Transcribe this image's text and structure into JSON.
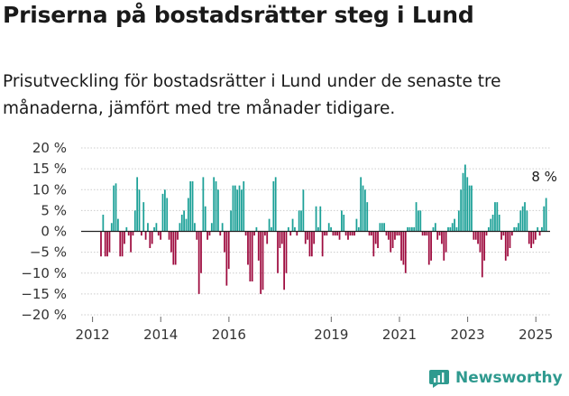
{
  "header": {
    "title": "Priserna på bostadsrätter steg i Lund",
    "subtitle": "Prisutveckling för bostadsrätter i Lund under de senaste tre månaderna, jämfört med tre månader tidigare."
  },
  "brand": {
    "name": "Newsworthy",
    "icon": "newsworthy-logo-icon",
    "color": "#2f9a8f"
  },
  "colors": {
    "positive": "#1ba097",
    "negative": "#9e0c3f",
    "zero_line": "#222222",
    "grid": "#cccccc"
  },
  "chart_data": {
    "type": "bar",
    "title": "Priserna på bostadsrätter steg i Lund",
    "xlabel": "",
    "ylabel": "",
    "ylim": [
      -20,
      20
    ],
    "yticks": [
      "20 %",
      "15 %",
      "10 %",
      "5 %",
      "0 %",
      "−5 %",
      "−10 %",
      "−15 %",
      "−20 %"
    ],
    "ytick_values": [
      20,
      15,
      10,
      5,
      0,
      -5,
      -10,
      -15,
      -20
    ],
    "xticks": [
      {
        "label": "2012",
        "year": 2012
      },
      {
        "label": "2014",
        "year": 2014
      },
      {
        "label": "2016",
        "year": 2016
      },
      {
        "label": "2019",
        "year": 2019
      },
      {
        "label": "2021",
        "year": 2021
      },
      {
        "label": "2023",
        "year": 2023
      },
      {
        "label": "2025",
        "year": 2025
      }
    ],
    "x_start": "2011-09",
    "x_end": "2025-06",
    "grid": true,
    "last_value_label": "8 %",
    "values": [
      -6,
      4,
      -6,
      -6,
      -5,
      2,
      11,
      11.5,
      3,
      -6,
      -6,
      -3,
      1,
      -1,
      -5,
      -1,
      5,
      13,
      10,
      -1,
      7,
      -2,
      2,
      -4,
      -3,
      1,
      2,
      -1,
      -2,
      9,
      10,
      8,
      -2,
      -5,
      -8,
      -8,
      -2,
      2,
      4,
      5,
      3,
      8,
      12,
      12,
      2,
      -2,
      -15,
      -10,
      13,
      6,
      -2,
      -1,
      2,
      13,
      12,
      10,
      -1,
      2,
      -5,
      -13,
      -9,
      5,
      11,
      11,
      10,
      11,
      10,
      12,
      -1,
      -8,
      -12,
      -12,
      -1,
      1,
      -7,
      -15,
      -14,
      -1,
      -3,
      3,
      1,
      12,
      13,
      -10,
      -4,
      -3,
      -14,
      -10,
      1,
      -1,
      3,
      1,
      -1,
      5,
      5,
      10,
      -3,
      -2,
      -6,
      -6,
      -3,
      6,
      1,
      6,
      -6,
      -1,
      -1,
      2,
      1,
      -1,
      -1,
      -1,
      -2,
      5,
      4,
      -1,
      -2,
      -1,
      -1,
      -1,
      3,
      1,
      13,
      11,
      10,
      7,
      -1,
      -1,
      -6,
      -3,
      -4,
      2,
      2,
      2,
      -1,
      -2,
      -5,
      -4,
      -2,
      -1,
      -1,
      -7,
      -8,
      -10,
      1,
      1,
      1,
      1,
      7,
      5,
      5,
      -1,
      -1,
      -1,
      -8,
      -7,
      1,
      2,
      -2,
      -1,
      -3,
      -7,
      -5,
      1,
      1,
      2,
      3,
      1,
      5,
      10,
      14,
      16,
      13,
      11,
      11,
      -2,
      -2,
      -3,
      -5,
      -11,
      -7,
      -1,
      1,
      3,
      4,
      7,
      7,
      4,
      -2,
      -1,
      -7,
      -6,
      -4,
      -1,
      1,
      1,
      2,
      5,
      6,
      7,
      5,
      -3,
      -4,
      -3,
      -2,
      1,
      -1,
      1,
      6,
      8
    ]
  }
}
